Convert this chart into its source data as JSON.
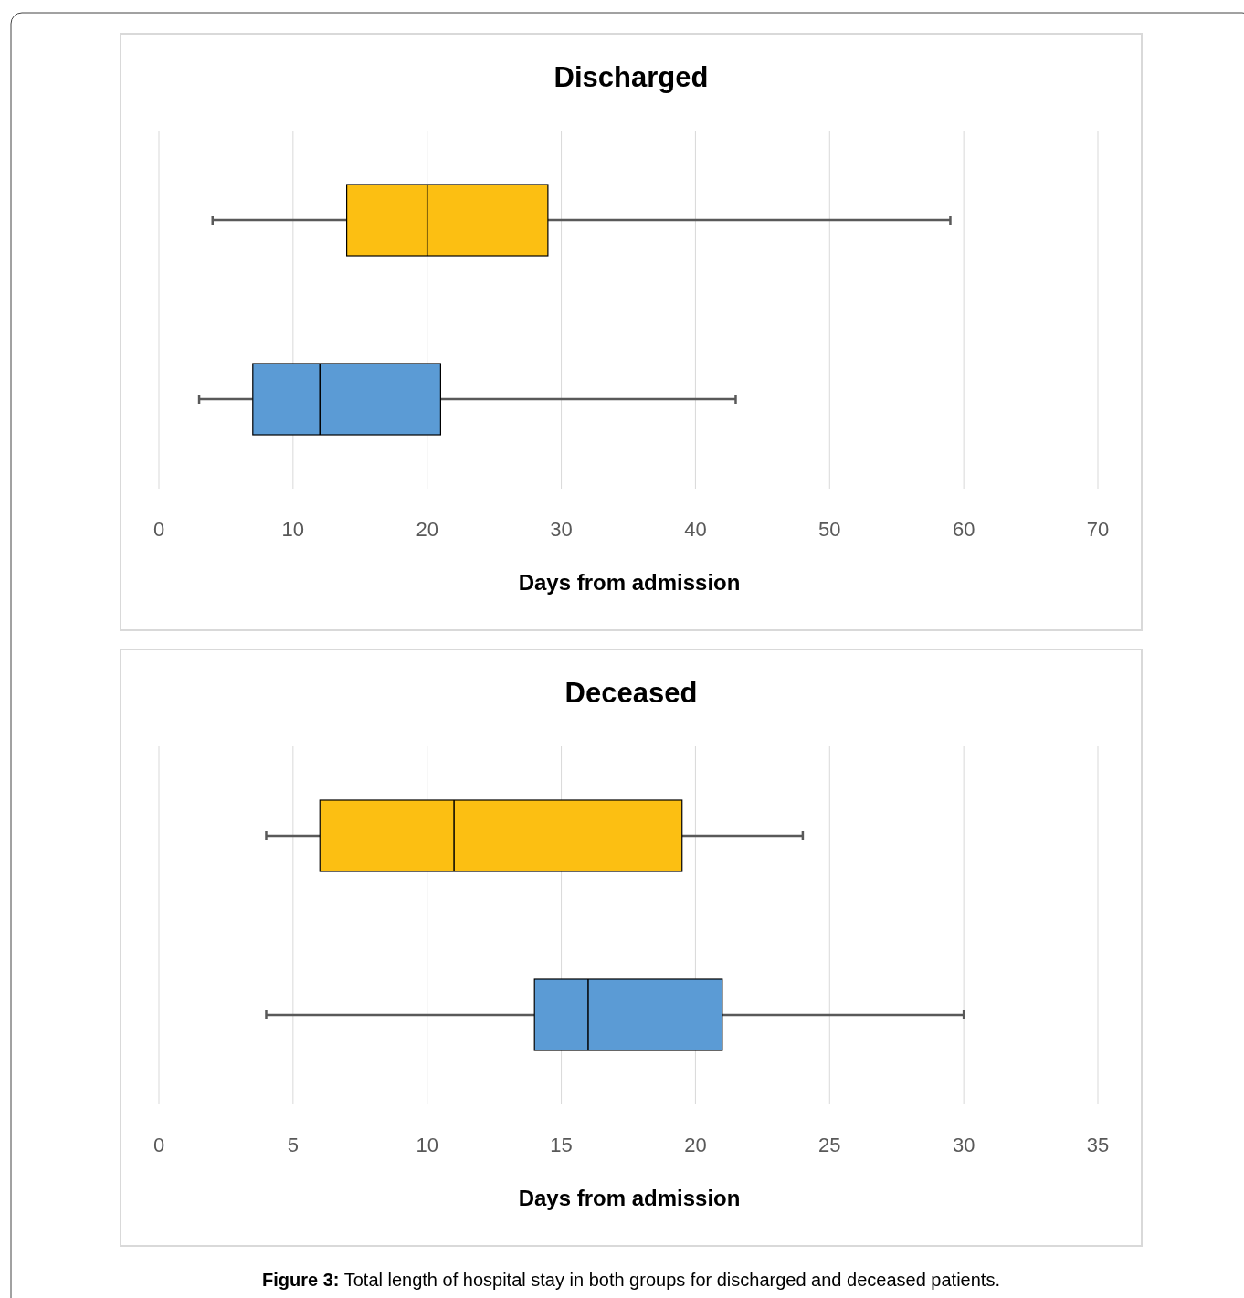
{
  "chart_data": [
    {
      "type": "box",
      "orientation": "horizontal",
      "title": "Discharged",
      "xlabel": "Days from admission",
      "categories": [
        null,
        null
      ],
      "colors": [
        "#fcbf12",
        "#5b9bd5"
      ],
      "boxes": [
        {
          "low": 4,
          "q1": 14,
          "median": 20,
          "q3": 29,
          "high": 59
        },
        {
          "low": 3,
          "q1": 7,
          "median": 12,
          "q3": 21,
          "high": 43
        }
      ],
      "xlim": [
        0,
        70
      ],
      "xticks": [
        0,
        10,
        20,
        30,
        40,
        50,
        60,
        70
      ],
      "grid": "x"
    },
    {
      "type": "box",
      "orientation": "horizontal",
      "title": "Deceased",
      "xlabel": "Days from admission",
      "categories": [
        null,
        null
      ],
      "colors": [
        "#fcbf12",
        "#5b9bd5"
      ],
      "boxes": [
        {
          "low": 4,
          "q1": 6,
          "median": 11,
          "q3": 19.5,
          "high": 24
        },
        {
          "low": 4,
          "q1": 14,
          "median": 16,
          "q3": 21,
          "high": 30
        }
      ],
      "xlim": [
        0,
        35
      ],
      "xticks": [
        0,
        5,
        10,
        15,
        20,
        25,
        30,
        35
      ],
      "grid": "x",
      "annotations": [
        "Figure 3: Total length of hospital stay in both groups for discharged and deceased patients."
      ]
    }
  ]
}
